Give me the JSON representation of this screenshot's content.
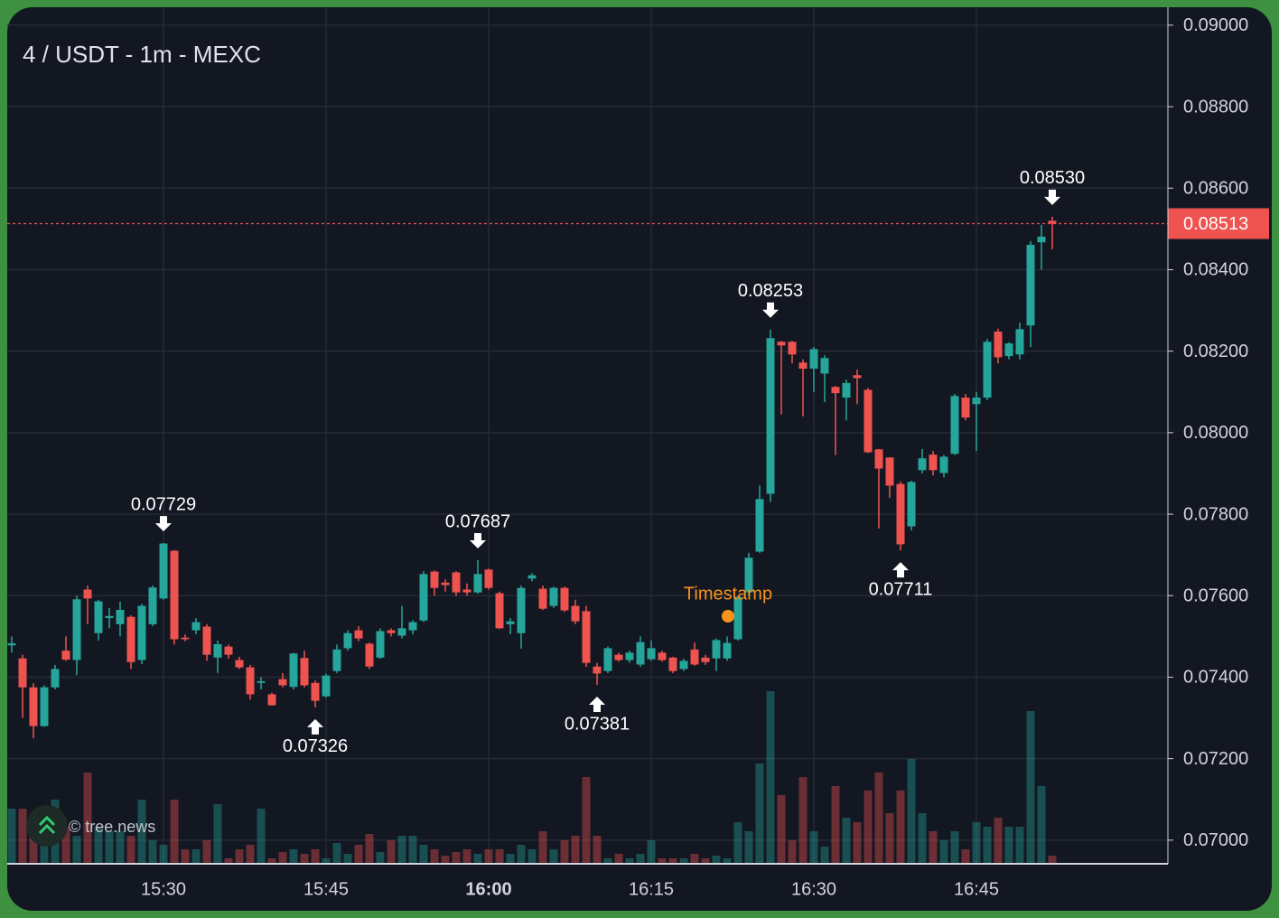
{
  "chart_data": {
    "type": "candlestick",
    "title": "4 / USDT - 1m - MEXC",
    "watermark": "© tree.news",
    "categories": [
      null,
      null,
      null,
      null,
      null,
      null,
      null,
      null,
      null,
      null,
      null,
      null,
      null,
      null,
      "15:30",
      null,
      null,
      null,
      null,
      null,
      null,
      null,
      null,
      null,
      null,
      null,
      null,
      null,
      null,
      "15:45",
      null,
      null,
      null,
      null,
      null,
      null,
      null,
      null,
      null,
      null,
      null,
      null,
      null,
      null,
      "16:00",
      null,
      null,
      null,
      null,
      null,
      null,
      null,
      null,
      null,
      null,
      null,
      null,
      null,
      null,
      "16:15",
      null,
      null,
      null,
      null,
      null,
      null,
      null,
      null,
      null,
      null,
      null,
      null,
      null,
      null,
      "16:30",
      null,
      null,
      null,
      null,
      null,
      null,
      null,
      null,
      null,
      null,
      null,
      null,
      null,
      null,
      "16:45",
      null,
      null,
      null,
      null,
      null,
      null,
      null
    ],
    "open": [
      0.07478,
      0.07446,
      0.07375,
      0.0728,
      0.07375,
      0.07465,
      0.07442,
      0.07615,
      0.07508,
      0.07545,
      0.0753,
      0.07548,
      0.07442,
      0.0753,
      0.07593,
      0.0771,
      0.07497,
      0.07515,
      0.07524,
      0.07448,
      0.07475,
      0.07442,
      0.07424,
      0.07386,
      0.07358,
      0.07395,
      0.07376,
      0.07447,
      0.07386,
      0.07353,
      0.07415,
      0.07471,
      0.07515,
      0.07482,
      0.07448,
      0.07515,
      0.07502,
      0.07515,
      0.07539,
      0.07659,
      0.07632,
      0.07657,
      0.07615,
      0.07608,
      0.07664,
      0.07606,
      0.0753,
      0.07508,
      0.07642,
      0.07617,
      0.07575,
      0.07619,
      0.07575,
      0.07562,
      0.07426,
      0.07415,
      0.07455,
      0.07442,
      0.07431,
      0.07444,
      0.0746,
      0.07448,
      0.0742,
      0.07468,
      0.07448,
      0.07446,
      0.07446,
      0.07493,
      0.07608,
      0.07708,
      0.0785,
      0.08223,
      0.08223,
      0.08172,
      0.08157,
      0.08145,
      0.08112,
      0.08086,
      0.08141,
      0.08105,
      0.07959,
      0.07939,
      0.07874,
      0.0777,
      0.07908,
      0.07946,
      0.07901,
      0.07948,
      0.08086,
      0.0807,
      0.08086,
      0.08248,
      0.08188,
      0.08192,
      0.08263,
      0.08467,
      0.0852
    ],
    "high": [
      0.075,
      0.07455,
      0.07385,
      0.0738,
      0.0743,
      0.075,
      0.076,
      0.07625,
      0.0759,
      0.0757,
      0.07585,
      0.07552,
      0.0758,
      0.07625,
      0.07729,
      0.07712,
      0.07505,
      0.07545,
      0.0753,
      0.0749,
      0.0748,
      0.0745,
      0.0743,
      0.074,
      0.07362,
      0.0741,
      0.0746,
      0.07465,
      0.07392,
      0.07408,
      0.0748,
      0.07515,
      0.07525,
      0.07485,
      0.0752,
      0.0752,
      0.07575,
      0.0754,
      0.0766,
      0.07662,
      0.0764,
      0.0766,
      0.0763,
      0.07687,
      0.07666,
      0.0761,
      0.07545,
      0.07625,
      0.07655,
      0.07625,
      0.07622,
      0.07622,
      0.0759,
      0.07575,
      0.07435,
      0.07475,
      0.0746,
      0.07465,
      0.075,
      0.0749,
      0.07465,
      0.0745,
      0.07445,
      0.07485,
      0.07455,
      0.07495,
      0.075,
      0.076,
      0.07705,
      0.0787,
      0.08253,
      0.08225,
      0.08225,
      0.0818,
      0.0821,
      0.0819,
      0.08115,
      0.0813,
      0.08155,
      0.0811,
      0.0796,
      0.0794,
      0.0788,
      0.07882,
      0.0796,
      0.07955,
      0.07945,
      0.08095,
      0.08095,
      0.081,
      0.0823,
      0.08255,
      0.08222,
      0.0827,
      0.0847,
      0.0851,
      0.0853
    ],
    "low": [
      0.0746,
      0.073,
      0.0725,
      0.07278,
      0.0737,
      0.0744,
      0.07405,
      0.0753,
      0.0749,
      0.0752,
      0.075,
      0.0742,
      0.07432,
      0.07525,
      0.0759,
      0.0748,
      0.07488,
      0.07505,
      0.0744,
      0.0741,
      0.07445,
      0.0742,
      0.07345,
      0.0737,
      0.0733,
      0.07375,
      0.0737,
      0.07375,
      0.07326,
      0.0735,
      0.0741,
      0.07465,
      0.07488,
      0.0742,
      0.07445,
      0.075,
      0.07495,
      0.07505,
      0.07535,
      0.076,
      0.0761,
      0.076,
      0.076,
      0.07605,
      0.07615,
      0.07518,
      0.07505,
      0.0747,
      0.07635,
      0.07565,
      0.0757,
      0.0756,
      0.0753,
      0.07425,
      0.07381,
      0.0741,
      0.07438,
      0.07435,
      0.07425,
      0.0744,
      0.07438,
      0.0741,
      0.07415,
      0.07428,
      0.0743,
      0.07415,
      0.0744,
      0.0749,
      0.076,
      0.07705,
      0.0783,
      0.08045,
      0.0817,
      0.0804,
      0.081,
      0.08075,
      0.07945,
      0.0803,
      0.0807,
      0.0795,
      0.07765,
      0.0784,
      0.07711,
      0.0776,
      0.079,
      0.07895,
      0.0789,
      0.07945,
      0.0803,
      0.07955,
      0.0808,
      0.0817,
      0.0818,
      0.0818,
      0.0821,
      0.084,
      0.0845
    ],
    "close": [
      0.07483,
      0.07375,
      0.0728,
      0.07375,
      0.0742,
      0.07443,
      0.07591,
      0.07593,
      0.07586,
      0.0755,
      0.07565,
      0.07437,
      0.07575,
      0.0762,
      0.07728,
      0.07493,
      0.07493,
      0.07535,
      0.07455,
      0.07481,
      0.07455,
      0.07424,
      0.07358,
      0.0739,
      0.07331,
      0.0738,
      0.07458,
      0.0738,
      0.07342,
      0.07404,
      0.07468,
      0.07508,
      0.07495,
      0.07426,
      0.07513,
      0.07508,
      0.0752,
      0.07535,
      0.07653,
      0.07619,
      0.07626,
      0.07608,
      0.07608,
      0.07653,
      0.07619,
      0.0752,
      0.07537,
      0.07619,
      0.0765,
      0.07568,
      0.07619,
      0.07564,
      0.07537,
      0.07435,
      0.07409,
      0.07471,
      0.07442,
      0.0746,
      0.07486,
      0.07471,
      0.07442,
      0.07415,
      0.0744,
      0.07431,
      0.07437,
      0.07491,
      0.07484,
      0.07597,
      0.07693,
      0.07837,
      0.08232,
      0.08214,
      0.08192,
      0.08157,
      0.08205,
      0.08183,
      0.08097,
      0.08122,
      0.08134,
      0.07952,
      0.07912,
      0.0787,
      0.07726,
      0.07879,
      0.07937,
      0.07908,
      0.07941,
      0.0809,
      0.08037,
      0.08086,
      0.08223,
      0.08185,
      0.08219,
      0.08254,
      0.08461,
      0.08481,
      0.08513
    ],
    "volume": [
      60,
      60,
      40,
      20,
      70,
      40,
      30,
      100,
      40,
      35,
      35,
      30,
      70,
      25,
      20,
      70,
      15,
      15,
      25,
      65,
      5,
      15,
      20,
      60,
      5,
      12,
      15,
      10,
      15,
      5,
      22,
      10,
      20,
      32,
      12,
      25,
      30,
      30,
      20,
      15,
      8,
      12,
      15,
      10,
      15,
      15,
      10,
      20,
      15,
      35,
      15,
      25,
      30,
      95,
      30,
      5,
      10,
      5,
      10,
      25,
      5,
      5,
      5,
      10,
      5,
      8,
      5,
      45,
      35,
      110,
      190,
      75,
      25,
      95,
      35,
      18,
      85,
      50,
      45,
      80,
      100,
      55,
      80,
      115,
      55,
      35,
      25,
      35,
      15,
      45,
      40,
      50,
      40,
      40,
      168,
      85,
      8
    ],
    "up_color": "#26a69a",
    "down_color": "#ef5350",
    "ylim": [
      0.06942,
      0.09044
    ],
    "yticks": [
      {
        "value": 0.07,
        "label": "0.07000"
      },
      {
        "value": 0.072,
        "label": "0.07200"
      },
      {
        "value": 0.074,
        "label": "0.07400"
      },
      {
        "value": 0.076,
        "label": "0.07600"
      },
      {
        "value": 0.078,
        "label": "0.07800"
      },
      {
        "value": 0.08,
        "label": "0.08000"
      },
      {
        "value": 0.082,
        "label": "0.08200"
      },
      {
        "value": 0.084,
        "label": "0.08400"
      },
      {
        "value": 0.086,
        "label": "0.08600"
      },
      {
        "value": 0.088,
        "label": "0.08800"
      },
      {
        "value": 0.09,
        "label": "0.09000"
      }
    ],
    "grid": true,
    "last_price": {
      "value": 0.08513,
      "label": "0.08513"
    },
    "annotations": [
      {
        "kind": "high",
        "value": 0.07729,
        "label": "0.07729"
      },
      {
        "kind": "low",
        "value": 0.07326,
        "label": "0.07326"
      },
      {
        "kind": "high",
        "value": 0.07687,
        "label": "0.07687"
      },
      {
        "kind": "low",
        "value": 0.07381,
        "label": "0.07381"
      },
      {
        "kind": "high",
        "value": 0.08253,
        "label": "0.08253"
      },
      {
        "kind": "low",
        "value": 0.07711,
        "label": "0.07711"
      },
      {
        "kind": "high",
        "value": 0.0853,
        "label": "0.08530"
      }
    ],
    "marker": {
      "label": "Timestamp",
      "color": "#f7931a"
    }
  }
}
